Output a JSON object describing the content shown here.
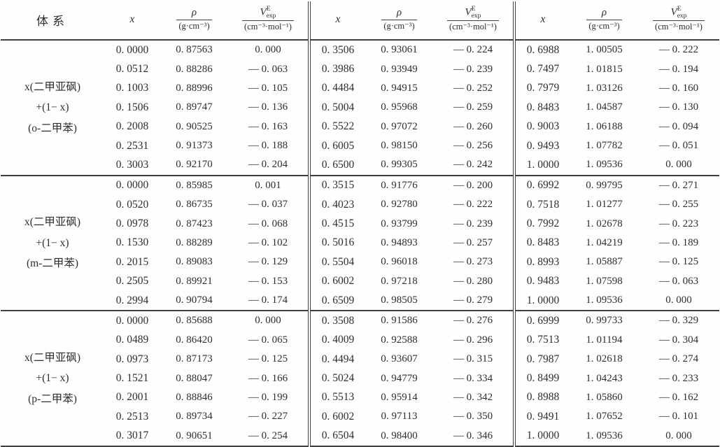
{
  "header": {
    "system": "体系",
    "x": "x",
    "rho": {
      "numerator": "ρ",
      "denominator": "(g·cm⁻³)"
    },
    "v": {
      "symbol": "V",
      "sup": "E",
      "sub": "exp",
      "denominator": "(cm⁻³·mol⁻¹)"
    }
  },
  "blocks": [
    {
      "system_lines": [
        "x(二甲亚砜)",
        "+(1− x)",
        "(o-二甲苯)"
      ],
      "rows": [
        {
          "g1": [
            "0. 0000",
            "0. 87563",
            "0. 000"
          ],
          "g2": [
            "0. 3506",
            "0. 93061",
            "— 0. 224"
          ],
          "g3": [
            "0. 6988",
            "1. 00505",
            "— 0. 222"
          ]
        },
        {
          "g1": [
            "0. 0512",
            "0. 88286",
            "— 0. 063"
          ],
          "g2": [
            "0. 3986",
            "0. 93949",
            "— 0. 239"
          ],
          "g3": [
            "0. 7497",
            "1. 01815",
            "— 0. 194"
          ]
        },
        {
          "g1": [
            "0. 1003",
            "0. 88996",
            "— 0. 105"
          ],
          "g2": [
            "0. 4484",
            "0. 94915",
            "— 0. 252"
          ],
          "g3": [
            "0. 7979",
            "1. 03126",
            "— 0. 160"
          ]
        },
        {
          "g1": [
            "0. 1506",
            "0. 89747",
            "— 0. 136"
          ],
          "g2": [
            "0. 5004",
            "0. 95968",
            "— 0. 259"
          ],
          "g3": [
            "0. 8483",
            "1. 04587",
            "— 0. 130"
          ]
        },
        {
          "g1": [
            "0. 2008",
            "0. 90525",
            "— 0. 163"
          ],
          "g2": [
            "0. 5522",
            "0. 97072",
            "— 0. 260"
          ],
          "g3": [
            "0. 9003",
            "1. 06188",
            "— 0. 094"
          ]
        },
        {
          "g1": [
            "0. 2531",
            "0. 91373",
            "— 0. 188"
          ],
          "g2": [
            "0. 6005",
            "0. 98150",
            "— 0. 256"
          ],
          "g3": [
            "0. 9493",
            "1. 07782",
            "— 0. 051"
          ]
        },
        {
          "g1": [
            "0. 3003",
            "0. 92170",
            "— 0. 204"
          ],
          "g2": [
            "0. 6500",
            "0. 99305",
            "— 0. 242"
          ],
          "g3": [
            "1. 0000",
            "1. 09536",
            "0. 000"
          ]
        }
      ]
    },
    {
      "system_lines": [
        "x(二甲亚砜)",
        "+(1− x)",
        "(m-二甲苯)"
      ],
      "rows": [
        {
          "g1": [
            "0. 0000",
            "0. 85985",
            "0. 001"
          ],
          "g2": [
            "0. 3515",
            "0. 91776",
            "— 0. 200"
          ],
          "g3": [
            "0. 6992",
            "0. 99795",
            "— 0. 271"
          ]
        },
        {
          "g1": [
            "0. 0520",
            "0. 86735",
            "— 0. 037"
          ],
          "g2": [
            "0. 4023",
            "0. 92780",
            "— 0. 222"
          ],
          "g3": [
            "0. 7518",
            "1. 01277",
            "— 0. 255"
          ]
        },
        {
          "g1": [
            "0. 0978",
            "0. 87423",
            "— 0. 068"
          ],
          "g2": [
            "0. 4515",
            "0. 93799",
            "— 0. 239"
          ],
          "g3": [
            "0. 7992",
            "1. 02678",
            "— 0. 223"
          ]
        },
        {
          "g1": [
            "0. 1530",
            "0. 88289",
            "— 0. 102"
          ],
          "g2": [
            "0. 5016",
            "0. 94893",
            "— 0. 257"
          ],
          "g3": [
            "0. 8483",
            "1. 04219",
            "— 0. 189"
          ]
        },
        {
          "g1": [
            "0. 2015",
            "0. 89083",
            "— 0. 129"
          ],
          "g2": [
            "0. 5504",
            "0. 96018",
            "— 0. 273"
          ],
          "g3": [
            "0. 8993",
            "1. 05887",
            "— 0. 125"
          ]
        },
        {
          "g1": [
            "0. 2505",
            "0. 89921",
            "— 0. 153"
          ],
          "g2": [
            "0. 6002",
            "0. 97218",
            "— 0. 280"
          ],
          "g3": [
            "0. 9483",
            "1. 07598",
            "— 0. 063"
          ]
        },
        {
          "g1": [
            "0. 2994",
            "0. 90794",
            "— 0. 174"
          ],
          "g2": [
            "0. 6509",
            "0. 98505",
            "— 0. 279"
          ],
          "g3": [
            "1. 0000",
            "1. 09536",
            "0. 000"
          ]
        }
      ]
    },
    {
      "system_lines": [
        "x(二甲亚砜)",
        "+(1− x)",
        "(p-二甲苯)"
      ],
      "rows": [
        {
          "g1": [
            "0. 0000",
            "0. 85688",
            "0. 000"
          ],
          "g2": [
            "0. 3508",
            "0. 91586",
            "— 0. 276"
          ],
          "g3": [
            "0. 6999",
            "0. 99733",
            "— 0. 329"
          ]
        },
        {
          "g1": [
            "0. 0489",
            "0. 86420",
            "— 0. 065"
          ],
          "g2": [
            "0. 4009",
            "0. 92588",
            "— 0. 296"
          ],
          "g3": [
            "0. 7513",
            "1. 01194",
            "— 0. 304"
          ]
        },
        {
          "g1": [
            "0. 0973",
            "0. 87173",
            "— 0. 125"
          ],
          "g2": [
            "0. 4494",
            "0. 93607",
            "— 0. 315"
          ],
          "g3": [
            "0. 7987",
            "1. 02618",
            "— 0. 274"
          ]
        },
        {
          "g1": [
            "0. 1521",
            "0. 88047",
            "— 0. 166"
          ],
          "g2": [
            "0. 5024",
            "0. 94779",
            "— 0. 334"
          ],
          "g3": [
            "0. 8499",
            "1. 04243",
            "— 0. 233"
          ]
        },
        {
          "g1": [
            "0. 2001",
            "0. 88846",
            "— 0. 199"
          ],
          "g2": [
            "0. 5513",
            "0. 95914",
            "— 0. 342"
          ],
          "g3": [
            "0. 8988",
            "1. 05860",
            "— 0. 162"
          ]
        },
        {
          "g1": [
            "0. 2513",
            "0. 89734",
            "— 0. 227"
          ],
          "g2": [
            "0. 6002",
            "0. 97113",
            "— 0. 350"
          ],
          "g3": [
            "0. 9491",
            "1. 07652",
            "— 0. 101"
          ]
        },
        {
          "g1": [
            "0. 3017",
            "0. 90651",
            "— 0. 254"
          ],
          "g2": [
            "0. 6504",
            "0. 98400",
            "— 0. 346"
          ],
          "g3": [
            "1. 0000",
            "1. 09536",
            "0. 000"
          ]
        }
      ]
    }
  ]
}
